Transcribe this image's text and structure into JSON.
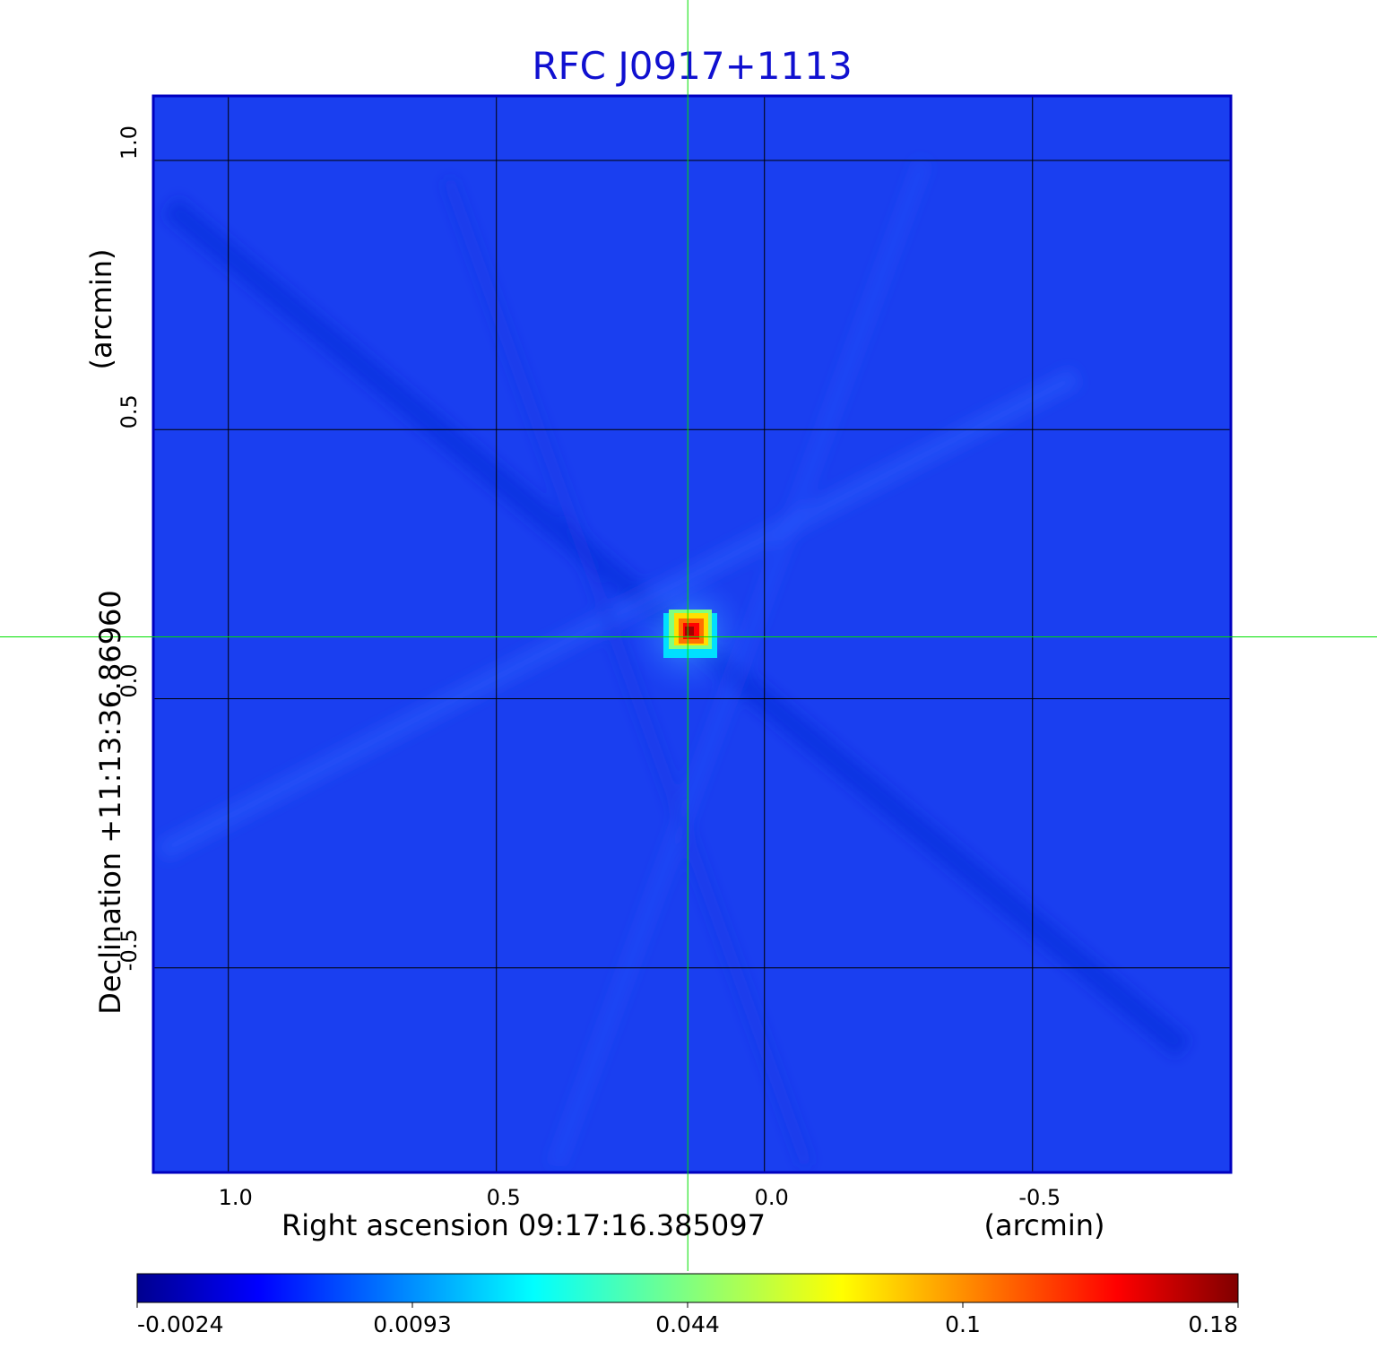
{
  "chart_data": {
    "type": "heatmap",
    "title": "RFC J0917+1113",
    "xlabel": "Right ascension  09:17:16.385097",
    "xunit": "(arcmin)",
    "ylabel": "Declination  +11:13:36.86960",
    "yunit": "(arcmin)",
    "xlim": [
      1.14,
      -0.87
    ],
    "ylim": [
      -0.88,
      1.12
    ],
    "x_ticks": [
      1.0,
      0.5,
      0.0,
      -0.5
    ],
    "x_tick_labels": [
      "1.0",
      "0.5",
      "0.0",
      "-0.5"
    ],
    "y_ticks": [
      1.0,
      0.5,
      0.0,
      -0.5
    ],
    "y_tick_labels": [
      "1.0",
      "0.5",
      "0.0",
      "-0.5"
    ],
    "grid": true,
    "crosshair": {
      "x": 0.143,
      "y": 0.115,
      "color": "#00e000"
    },
    "source": {
      "ra_offset": 0.14,
      "dec_offset": 0.117,
      "peak": 0.18
    },
    "colorbar": {
      "colormap": "jet",
      "position": "bottom",
      "tick_labels": [
        "-0.0024",
        "0.0093",
        "0.044",
        "0.1",
        "0.18"
      ]
    },
    "colors": {
      "title": "#1010d0",
      "background": "#1a3ff0",
      "grid": "#000000"
    }
  }
}
